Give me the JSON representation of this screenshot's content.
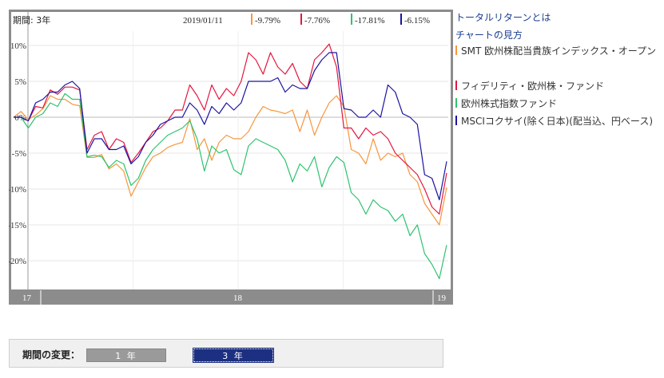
{
  "chart_data": {
    "type": "line",
    "period_label": "期間: 3年",
    "date_label": "2019/01/11",
    "x_tick_labels": [
      "17",
      "18",
      "19"
    ],
    "ylim": [
      -24,
      12
    ],
    "y_ticks": [
      10,
      5,
      0,
      -5,
      -10,
      -15,
      -20
    ],
    "y_tick_labels": [
      "10%",
      "5%",
      "0%",
      "-5%",
      "-10%",
      "-15%",
      "-20%"
    ],
    "grid": true,
    "series": [
      {
        "name": "SMT 欧州株配当貴族インデックス・オープン",
        "color": "#f7963c",
        "latest_label": "-9.79%",
        "values": [
          0,
          0.8,
          -0.3,
          0.3,
          1.2,
          3.0,
          2.5,
          2.5,
          1.8,
          1.6,
          -5.6,
          -5.6,
          -5.2,
          -7.2,
          -6.5,
          -7.5,
          -11,
          -9,
          -7,
          -5.5,
          -5.0,
          -4.2,
          -3.8,
          -3.5,
          -0.2,
          -4.5,
          -3,
          -6,
          -3.5,
          -2.5,
          -3,
          -3,
          -2,
          0,
          1.5,
          1,
          0.8,
          0.5,
          1,
          -2,
          1,
          -2.5,
          0,
          2,
          3,
          1.5,
          -4.5,
          -5,
          -6.5,
          -3,
          -6,
          -5,
          -5.5,
          -5,
          -8,
          -9,
          -12,
          -13.5,
          -15,
          -9.79
        ]
      },
      {
        "name": "フィデリティ・欧州株・ファンド",
        "color": "#e3173e",
        "latest_label": "-7.76%",
        "values": [
          0,
          0,
          -0.5,
          1.5,
          1.3,
          3.8,
          3.2,
          4.2,
          4.2,
          3.8,
          -4.5,
          -2.5,
          -2,
          -4.5,
          -3,
          -3.5,
          -6.3,
          -5,
          -3.5,
          -2,
          -1.5,
          -0.5,
          1,
          1,
          4.5,
          3,
          1,
          4.5,
          2.5,
          4,
          3,
          5,
          9,
          8,
          6,
          9,
          7,
          6,
          7.5,
          5,
          4,
          8,
          9,
          10.2,
          7,
          -1.5,
          -1.5,
          -3,
          -1.5,
          -2.5,
          -2,
          -3,
          -5,
          -6,
          -7,
          -8,
          -10,
          -12.5,
          -13.5,
          -7.76
        ]
      },
      {
        "name": "欧州株式指数ファンド",
        "color": "#2ec36e",
        "latest_label": "-17.81%",
        "values": [
          0,
          0,
          -1.5,
          0,
          0.5,
          2.0,
          1.5,
          3.3,
          2.5,
          2.5,
          -5.5,
          -5.3,
          -5.5,
          -7,
          -6,
          -6.5,
          -9.5,
          -8.5,
          -6,
          -4.5,
          -3.5,
          -2.5,
          -2,
          -1.5,
          -0.5,
          -3,
          -7.5,
          -4,
          -5,
          -4.5,
          -7.3,
          -8,
          -4,
          -3,
          -3.5,
          -4,
          -4.5,
          -6,
          -9,
          -6.5,
          -7.5,
          -5.5,
          -9.7,
          -7,
          -5.5,
          -6.3,
          -10.5,
          -11.5,
          -13.5,
          -11.5,
          -12.5,
          -13,
          -14.5,
          -13.5,
          -16.5,
          -15,
          -19,
          -20.5,
          -22.5,
          -17.81
        ]
      },
      {
        "name": "MSCIコクサイ(除く日本)(配当込、円ベース)",
        "color": "#1a14a0",
        "latest_label": "-6.15%",
        "values": [
          0,
          0,
          -0.5,
          2.0,
          2.5,
          3.5,
          3.5,
          4.5,
          5,
          4,
          -5,
          -3,
          -3,
          -4.5,
          -4.5,
          -4,
          -6.5,
          -5.5,
          -3.5,
          -2.5,
          -1,
          -0.5,
          0,
          0,
          2,
          1,
          -1,
          1.5,
          0.5,
          2,
          1,
          2,
          5,
          5,
          5,
          5,
          5.5,
          3.5,
          4.5,
          4,
          4,
          6.5,
          8,
          9,
          9,
          1.2,
          1,
          0,
          0,
          1,
          0,
          4.5,
          3.5,
          0.5,
          0,
          -1,
          -8,
          -8.5,
          -11.5,
          -6.15
        ]
      }
    ]
  },
  "legend": {
    "help_link": "トータルリターンとは",
    "guide_link": "チャートの見方",
    "items": [
      {
        "label": "SMT 欧州株配当貴族インデックス・オープン",
        "color": "#f7963c"
      },
      {
        "label": "フィデリティ・欧州株・ファンド",
        "color": "#e3173e"
      },
      {
        "label": "欧州株式指数ファンド",
        "color": "#2ec36e"
      },
      {
        "label": "MSCIコクサイ(除く日本)(配当込、円ベース)",
        "color": "#1a14a0"
      }
    ]
  },
  "period": {
    "label": "期間の変更：",
    "btn_1y": "1 年",
    "btn_3y": "3 年"
  }
}
